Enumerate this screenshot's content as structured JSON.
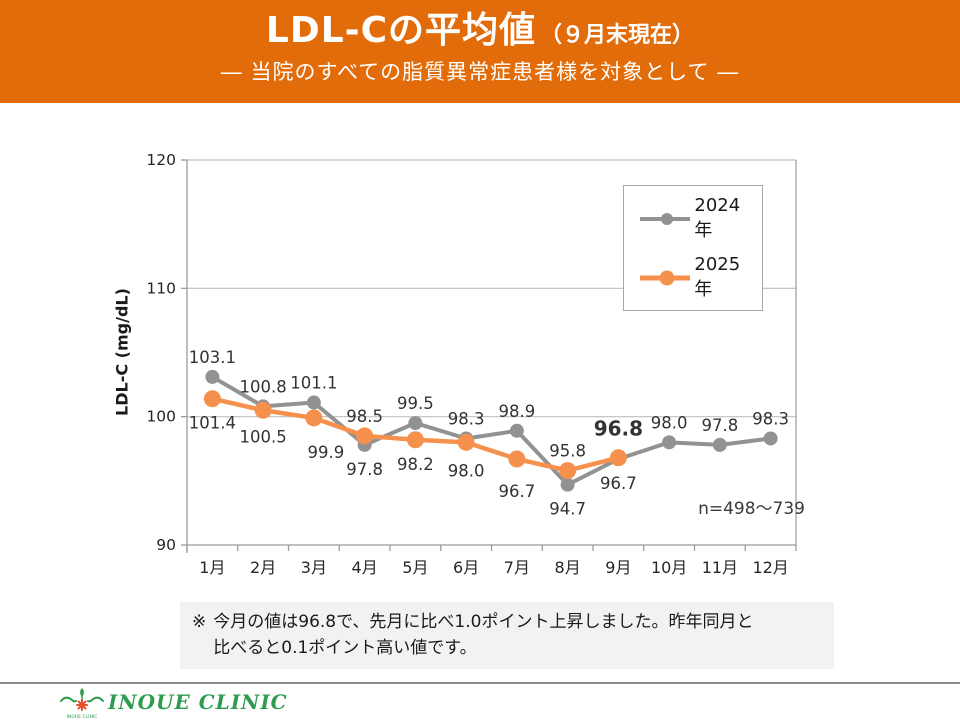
{
  "header": {
    "title_main": "LDL-Cの平均値",
    "title_annotation": "（９月末現在）",
    "subtitle": "―  当院のすべての脂質異常症患者様を対象として  ―"
  },
  "chart_data": {
    "type": "line",
    "ylabel": "LDL-C (mg/dL)",
    "xlabel": "",
    "ylim": [
      90,
      120
    ],
    "yticks": [
      90,
      100,
      110,
      120
    ],
    "grid": true,
    "legend_position": "top-right",
    "annotation": "n=498～739",
    "categories": [
      "1月",
      "2月",
      "3月",
      "4月",
      "5月",
      "6月",
      "7月",
      "8月",
      "9月",
      "10月",
      "11月",
      "12月"
    ],
    "series": [
      {
        "name": "2024年",
        "color": "#929292",
        "values": [
          103.1,
          100.8,
          101.1,
          97.8,
          99.5,
          98.3,
          98.9,
          94.7,
          96.7,
          98.0,
          97.8,
          98.3
        ],
        "labels": [
          "103.1",
          "100.8",
          "101.1",
          "97.8",
          "99.5",
          "98.3",
          "98.9",
          "94.7",
          "96.7",
          "98.0",
          "97.8",
          "98.3"
        ],
        "label_pos": [
          "above",
          "above",
          "above",
          "below",
          "above",
          "above",
          "above",
          "below",
          "below",
          "above",
          "above",
          "above"
        ]
      },
      {
        "name": "2025年",
        "color": "#F5914D",
        "values": [
          101.4,
          100.5,
          99.9,
          98.5,
          98.2,
          98.0,
          96.7,
          95.8,
          96.8,
          null,
          null,
          null
        ],
        "labels": [
          "101.4",
          "100.5",
          "99.9",
          "98.5",
          "98.2",
          "98.0",
          "96.7",
          "95.8",
          "96.8"
        ],
        "label_pos": [
          "below",
          "below",
          "below",
          "above",
          "below",
          "below",
          "below",
          "above",
          "above"
        ],
        "label_dx": [
          0,
          0,
          12,
          0,
          0,
          0,
          0,
          0,
          0
        ],
        "label_dy": [
          0,
          2,
          10,
          0,
          0,
          4,
          8,
          0,
          0
        ],
        "highlight_index": 8,
        "highlight_color": "#FF0000"
      }
    ]
  },
  "note": {
    "marker": "※",
    "line1": "今月の値は96.8で、先月に比べ1.0ポイント上昇しました。昨年同月と",
    "line2": "比べると0.1ポイント高い値です。"
  },
  "footer": {
    "clinic_name": "INOUE CLINIC"
  },
  "colors": {
    "header_bg": "#E36C0A",
    "series_2024": "#929292",
    "series_2025": "#F5914D",
    "highlight": "#FF0000",
    "note_bg": "#F2F2F2",
    "logo_green": "#2E9B4E",
    "gridline": "#BFBFBF",
    "axis": "#9B9B9B"
  }
}
